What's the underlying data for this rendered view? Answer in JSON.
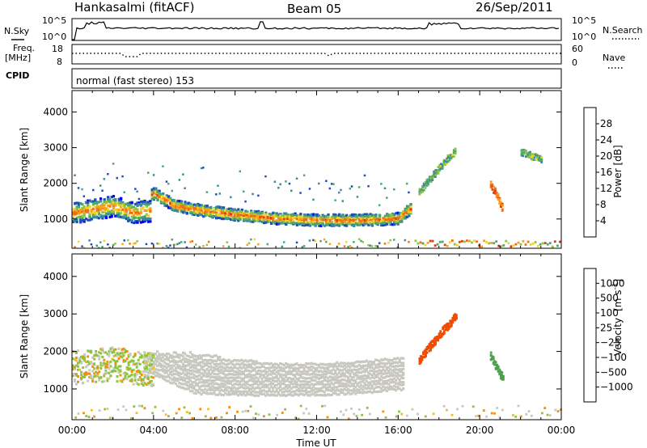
{
  "header": {
    "station": "Hankasalmi (fitACF)",
    "beam": "Beam 05",
    "date": "26/Sep/2011"
  },
  "strip": {
    "nsky_label": "N.Sky",
    "nsearch_label": "N.Search",
    "noise_ticks": [
      "10^5",
      "10^0"
    ],
    "freq_label_1": "Freq.",
    "freq_label_2": "[MHz]",
    "freq_ticks": [
      "18",
      "8"
    ],
    "nave_ticks": [
      "60",
      "0"
    ],
    "nave_label": "Nave",
    "cpid_label": "CPID",
    "cpid_value": "normal (fast stereo) 153"
  },
  "colors": {
    "power_scale": [
      "#0000ff",
      "#1e4fb8",
      "#3c8a9e",
      "#4ea86a",
      "#8cc43c",
      "#f5d228",
      "#f5a01e",
      "#f06e14",
      "#e63c0a",
      "#ff0000"
    ],
    "velocity_scale": [
      "#e60000",
      "#f04b00",
      "#f58c0a",
      "#f0be28",
      "#c8c8c0",
      "#c8c8c0",
      "#8cc43c",
      "#4ea04e",
      "#3c6eb4",
      "#1e3cc8"
    ],
    "ground_scatter": "#c8c8c0"
  },
  "chart_data": [
    {
      "type": "heatmap",
      "title": "",
      "xlabel": "",
      "ylabel": "Slant Range [km]",
      "xlim": [
        0,
        24
      ],
      "ylim": [
        180,
        4600
      ],
      "yticks": [
        "1000",
        "2000",
        "3000",
        "4000"
      ],
      "colorbar": {
        "label": "Power [dB]",
        "ticks": [
          "4",
          "8",
          "12",
          "16",
          "20",
          "24",
          "28"
        ],
        "range": [
          0,
          32
        ]
      },
      "features": [
        {
          "name": "main band",
          "x": [
            0,
            1,
            2,
            3,
            4,
            5,
            6,
            8,
            10,
            12,
            14,
            15,
            16,
            16.5
          ],
          "range": [
            1350,
            1300,
            1400,
            1500,
            1750,
            1400,
            1300,
            1150,
            1050,
            1000,
            1000,
            1020,
            1050,
            1300
          ],
          "power": 28
        },
        {
          "name": "early echoes",
          "x": [
            0,
            0.5,
            1,
            1.5,
            2,
            2.5,
            3,
            3.5
          ],
          "range": [
            1200,
            1250,
            1300,
            1350,
            1400,
            1300,
            1200,
            1250
          ],
          "power": 26
        },
        {
          "name": "evening streak",
          "x": [
            17,
            17.6,
            18.2,
            18.8
          ],
          "range": [
            1800,
            2200,
            2600,
            2950
          ],
          "power": 12
        },
        {
          "name": "late band",
          "x": [
            20.5,
            20.8,
            21.1
          ],
          "range": [
            2000,
            1700,
            1300
          ],
          "power": 24
        },
        {
          "name": "upper patch",
          "x": [
            22,
            22.5,
            23
          ],
          "range": [
            2900,
            2800,
            2700
          ],
          "power": 12
        }
      ]
    },
    {
      "type": "heatmap",
      "title": "",
      "xlabel": "Time UT",
      "ylabel": "Slant Range [km]",
      "xlim": [
        0,
        24
      ],
      "ylim": [
        180,
        4600
      ],
      "xticks": [
        "00:00",
        "04:00",
        "08:00",
        "12:00",
        "16:00",
        "20:00",
        "00:00"
      ],
      "yticks": [
        "1000",
        "2000",
        "3000",
        "4000"
      ],
      "colorbar": {
        "label": "Velocity",
        "unit_1": "[m s",
        "unit_2": "-1",
        "unit_3": "]",
        "ticks": [
          "1000",
          "500",
          "100",
          "25",
          "−25",
          "−100",
          "−500",
          "−1000"
        ],
        "range": [
          -1200,
          1200
        ]
      },
      "features": [
        {
          "name": "ground scatter band",
          "x": [
            3.5,
            6,
            8,
            10,
            12,
            14,
            16
          ],
          "range_low": [
            1500,
            900,
            850,
            850,
            850,
            900,
            1000
          ],
          "range_high": [
            2000,
            1950,
            1800,
            1700,
            1700,
            1750,
            1900
          ]
        },
        {
          "name": "morning flows",
          "x": [
            0,
            1,
            2,
            3,
            4
          ],
          "range": [
            1600,
            1650,
            1700,
            1600,
            1500
          ],
          "velocity": 100
        },
        {
          "name": "evening streak",
          "x": [
            17,
            17.6,
            18.2,
            18.8
          ],
          "range": [
            1800,
            2200,
            2600,
            2950
          ],
          "velocity": -300
        },
        {
          "name": "late band",
          "x": [
            20.5,
            20.8,
            21.1
          ],
          "range": [
            1900,
            1600,
            1300
          ],
          "velocity": 900
        }
      ]
    }
  ]
}
